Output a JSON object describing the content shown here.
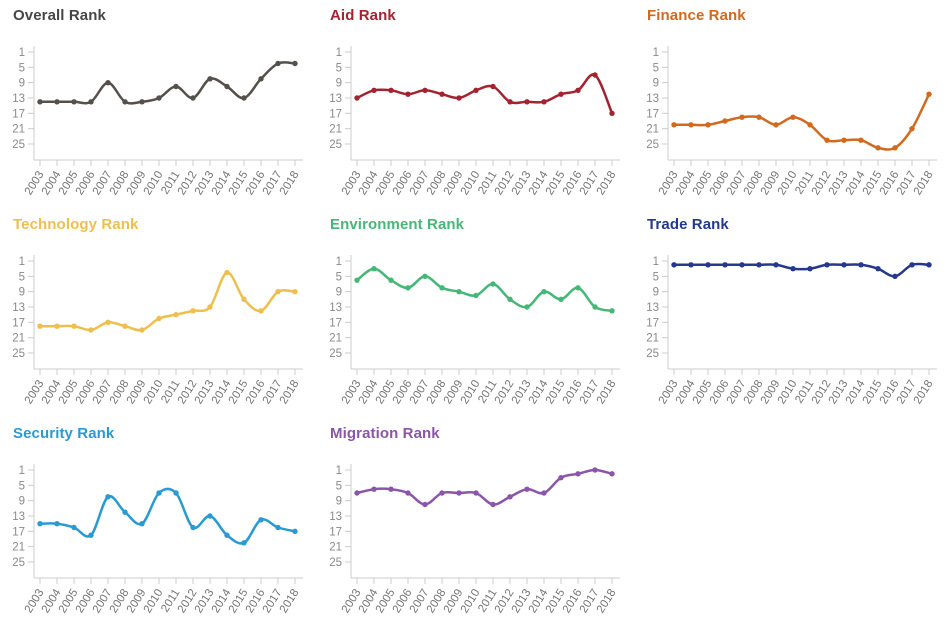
{
  "page": {
    "background": "#ffffff"
  },
  "axis": {
    "yticks": [
      1,
      5,
      9,
      13,
      17,
      21,
      25
    ],
    "axis_line_color": "#cccccc",
    "ytick_label_color": "#8a8a8a",
    "xtick_label_color": "#757575"
  },
  "chart_data": [
    {
      "type": "line",
      "title": "Overall Rank",
      "title_color": "#464646",
      "color": "#55504a",
      "categories": [
        "2003",
        "2004",
        "2005",
        "2006",
        "2007",
        "2008",
        "2009",
        "2010",
        "2011",
        "2012",
        "2013",
        "2014",
        "2015",
        "2016",
        "2017",
        "2018"
      ],
      "values": [
        14,
        14,
        14,
        14,
        9,
        14,
        14,
        13,
        10,
        13,
        8,
        10,
        13,
        8,
        4,
        4
      ],
      "xlabel": "",
      "ylabel": "",
      "ylim": [
        27,
        1
      ],
      "y_inverted": true,
      "grid": false,
      "legend": "none"
    },
    {
      "type": "line",
      "title": "Aid Rank",
      "title_color": "#a32330",
      "color": "#a32330",
      "categories": [
        "2003",
        "2004",
        "2005",
        "2006",
        "2007",
        "2008",
        "2009",
        "2010",
        "2011",
        "2012",
        "2013",
        "2014",
        "2015",
        "2016",
        "2017",
        "2018"
      ],
      "values": [
        13,
        11,
        11,
        12,
        11,
        12,
        13,
        11,
        10,
        14,
        14,
        14,
        12,
        11,
        7,
        17
      ],
      "xlabel": "",
      "ylabel": "",
      "ylim": [
        27,
        1
      ],
      "y_inverted": true,
      "grid": false,
      "legend": "none"
    },
    {
      "type": "line",
      "title": "Finance Rank",
      "title_color": "#d2691e",
      "color": "#d2691e",
      "categories": [
        "2003",
        "2004",
        "2005",
        "2006",
        "2007",
        "2008",
        "2009",
        "2010",
        "2011",
        "2012",
        "2013",
        "2014",
        "2015",
        "2016",
        "2017",
        "2018"
      ],
      "values": [
        20,
        20,
        20,
        19,
        18,
        18,
        20,
        18,
        20,
        24,
        24,
        24,
        26,
        26,
        21,
        12
      ],
      "xlabel": "",
      "ylabel": "",
      "ylim": [
        27,
        1
      ],
      "y_inverted": true,
      "grid": false,
      "legend": "none"
    },
    {
      "type": "line",
      "title": "Technology Rank",
      "title_color": "#eebf4d",
      "color": "#eebf4d",
      "categories": [
        "2003",
        "2004",
        "2005",
        "2006",
        "2007",
        "2008",
        "2009",
        "2010",
        "2011",
        "2012",
        "2013",
        "2014",
        "2015",
        "2016",
        "2017",
        "2018"
      ],
      "values": [
        18,
        18,
        18,
        19,
        17,
        18,
        19,
        16,
        15,
        14,
        13,
        4,
        11,
        14,
        9,
        9
      ],
      "xlabel": "",
      "ylabel": "",
      "ylim": [
        27,
        1
      ],
      "y_inverted": true,
      "grid": false,
      "legend": "none"
    },
    {
      "type": "line",
      "title": "Environment Rank",
      "title_color": "#45b878",
      "color": "#45b878",
      "categories": [
        "2003",
        "2004",
        "2005",
        "2006",
        "2007",
        "2008",
        "2009",
        "2010",
        "2011",
        "2012",
        "2013",
        "2014",
        "2015",
        "2016",
        "2017",
        "2018"
      ],
      "values": [
        6,
        3,
        6,
        8,
        5,
        8,
        9,
        10,
        7,
        11,
        13,
        9,
        11,
        8,
        13,
        14
      ],
      "xlabel": "",
      "ylabel": "",
      "ylim": [
        27,
        1
      ],
      "y_inverted": true,
      "grid": false,
      "legend": "none"
    },
    {
      "type": "line",
      "title": "Trade Rank",
      "title_color": "#24388f",
      "color": "#24388f",
      "categories": [
        "2003",
        "2004",
        "2005",
        "2006",
        "2007",
        "2008",
        "2009",
        "2010",
        "2011",
        "2012",
        "2013",
        "2014",
        "2015",
        "2016",
        "2017",
        "2018"
      ],
      "values": [
        2,
        2,
        2,
        2,
        2,
        2,
        2,
        3,
        3,
        2,
        2,
        2,
        3,
        5,
        2,
        2
      ],
      "xlabel": "",
      "ylabel": "",
      "ylim": [
        27,
        1
      ],
      "y_inverted": true,
      "grid": false,
      "legend": "none"
    },
    {
      "type": "line",
      "title": "Security Rank",
      "title_color": "#2a9ad2",
      "color": "#2a9ad2",
      "categories": [
        "2003",
        "2004",
        "2005",
        "2006",
        "2007",
        "2008",
        "2009",
        "2010",
        "2011",
        "2012",
        "2013",
        "2014",
        "2015",
        "2016",
        "2017",
        "2018"
      ],
      "values": [
        15,
        15,
        16,
        18,
        8,
        12,
        15,
        7,
        7,
        16,
        13,
        18,
        20,
        14,
        16,
        17
      ],
      "xlabel": "",
      "ylabel": "",
      "ylim": [
        27,
        1
      ],
      "y_inverted": true,
      "grid": false,
      "legend": "none"
    },
    {
      "type": "line",
      "title": "Migration Rank",
      "title_color": "#8b55a9",
      "color": "#8b55a9",
      "categories": [
        "2003",
        "2004",
        "2005",
        "2006",
        "2007",
        "2008",
        "2009",
        "2010",
        "2011",
        "2012",
        "2013",
        "2014",
        "2015",
        "2016",
        "2017",
        "2018"
      ],
      "values": [
        7,
        6,
        6,
        7,
        10,
        7,
        7,
        7,
        10,
        8,
        6,
        7,
        3,
        2,
        1,
        2
      ],
      "xlabel": "",
      "ylabel": "",
      "ylim": [
        27,
        1
      ],
      "y_inverted": true,
      "grid": false,
      "legend": "none"
    }
  ]
}
